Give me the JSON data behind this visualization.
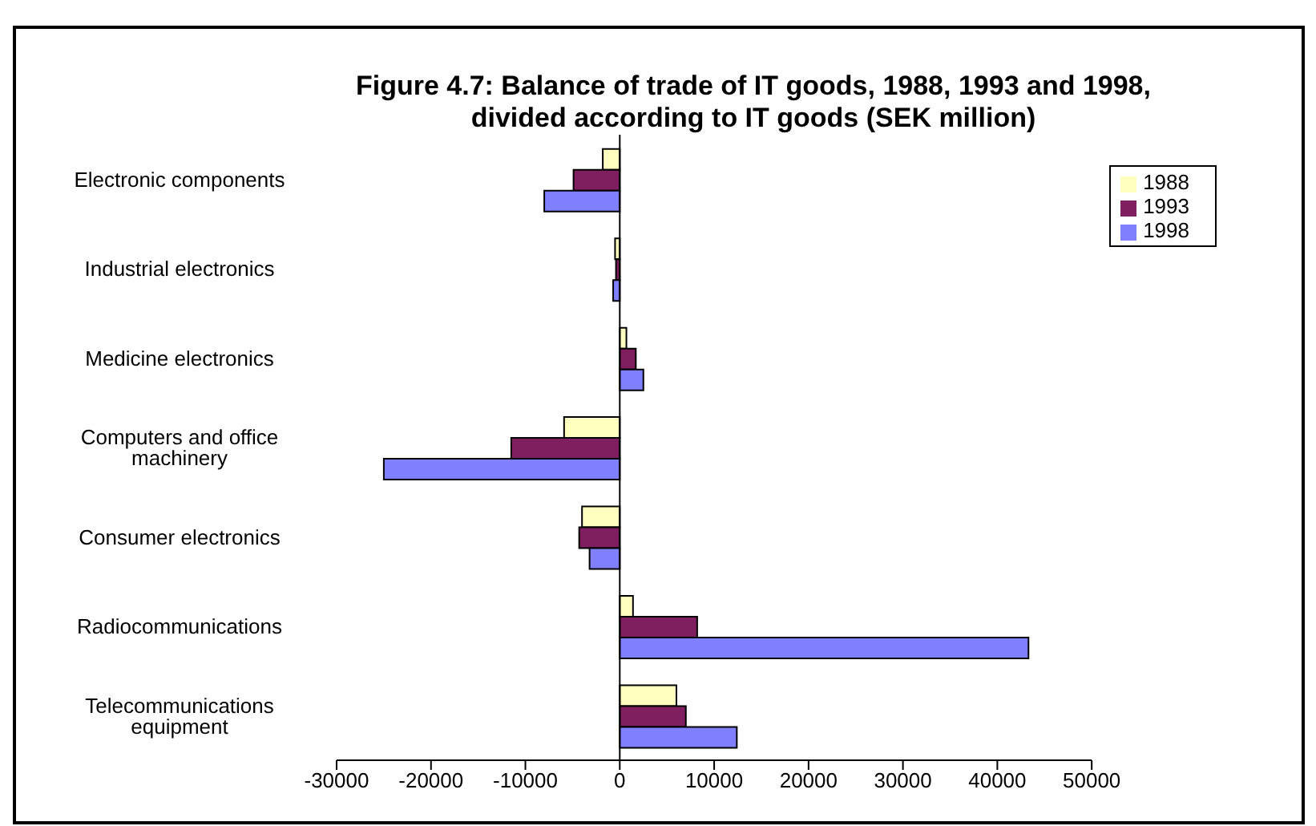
{
  "chart_data": {
    "type": "bar",
    "orientation": "horizontal",
    "title": "Figure 4.7:  Balance of trade of IT goods, 1988, 1993 and 1998,\ndivided according to IT goods (SEK million)",
    "categories": [
      "Electronic components",
      "Industrial electronics",
      "Medicine electronics",
      "Computers and office machinery",
      "Consumer electronics",
      "Radiocommunications",
      "Telecommunications equipment"
    ],
    "series": [
      {
        "name": "1988",
        "color": "#ffffc0",
        "values": [
          -1800,
          -500,
          700,
          -5900,
          -4000,
          1400,
          6000
        ]
      },
      {
        "name": "1993",
        "color": "#7f1f5f",
        "values": [
          -4900,
          -400,
          1700,
          -11500,
          -4300,
          8200,
          7000
        ]
      },
      {
        "name": "1998",
        "color": "#8080ff",
        "values": [
          -8000,
          -700,
          2500,
          -25000,
          -3200,
          43300,
          12400
        ]
      }
    ],
    "xlim": [
      -30000,
      50000
    ],
    "xticks": [
      -30000,
      -20000,
      -10000,
      0,
      10000,
      20000,
      30000,
      40000,
      50000
    ],
    "legend": "top right"
  }
}
